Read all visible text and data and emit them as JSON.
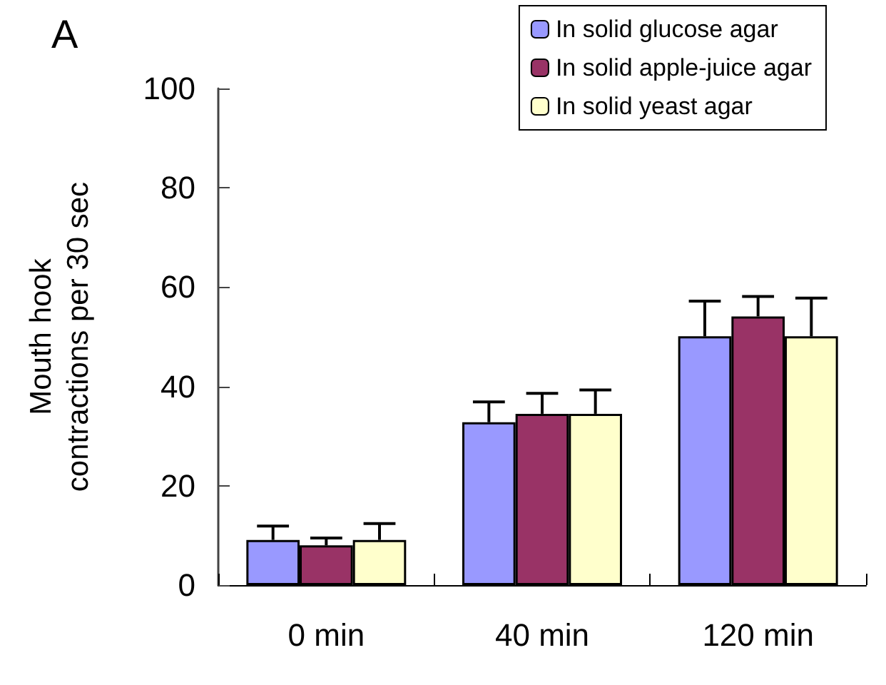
{
  "chart_data": {
    "type": "bar",
    "categories": [
      "0 min",
      "40 min",
      "120 min"
    ],
    "series": [
      {
        "name": "In solid glucose agar",
        "color": "#9999ff",
        "values": [
          9.1,
          32.8,
          50.1
        ],
        "errors": [
          2.8,
          4.1,
          7.1
        ]
      },
      {
        "name": "In solid apple-juice agar",
        "color": "#993366",
        "values": [
          8.0,
          34.5,
          54.1
        ],
        "errors": [
          1.5,
          4.1,
          4.0
        ]
      },
      {
        "name": "In solid yeast agar",
        "color": "#ffffcc",
        "values": [
          9.1,
          34.5,
          50.1
        ],
        "errors": [
          3.3,
          4.8,
          7.7
        ]
      }
    ],
    "ylabel": "Mouth hook\ncontractions per 30 sec",
    "ylim": [
      0,
      100
    ],
    "yticks": [
      0,
      20,
      40,
      60,
      80,
      100
    ],
    "grid": false,
    "legend": "top right",
    "annotations": [
      "A"
    ]
  }
}
